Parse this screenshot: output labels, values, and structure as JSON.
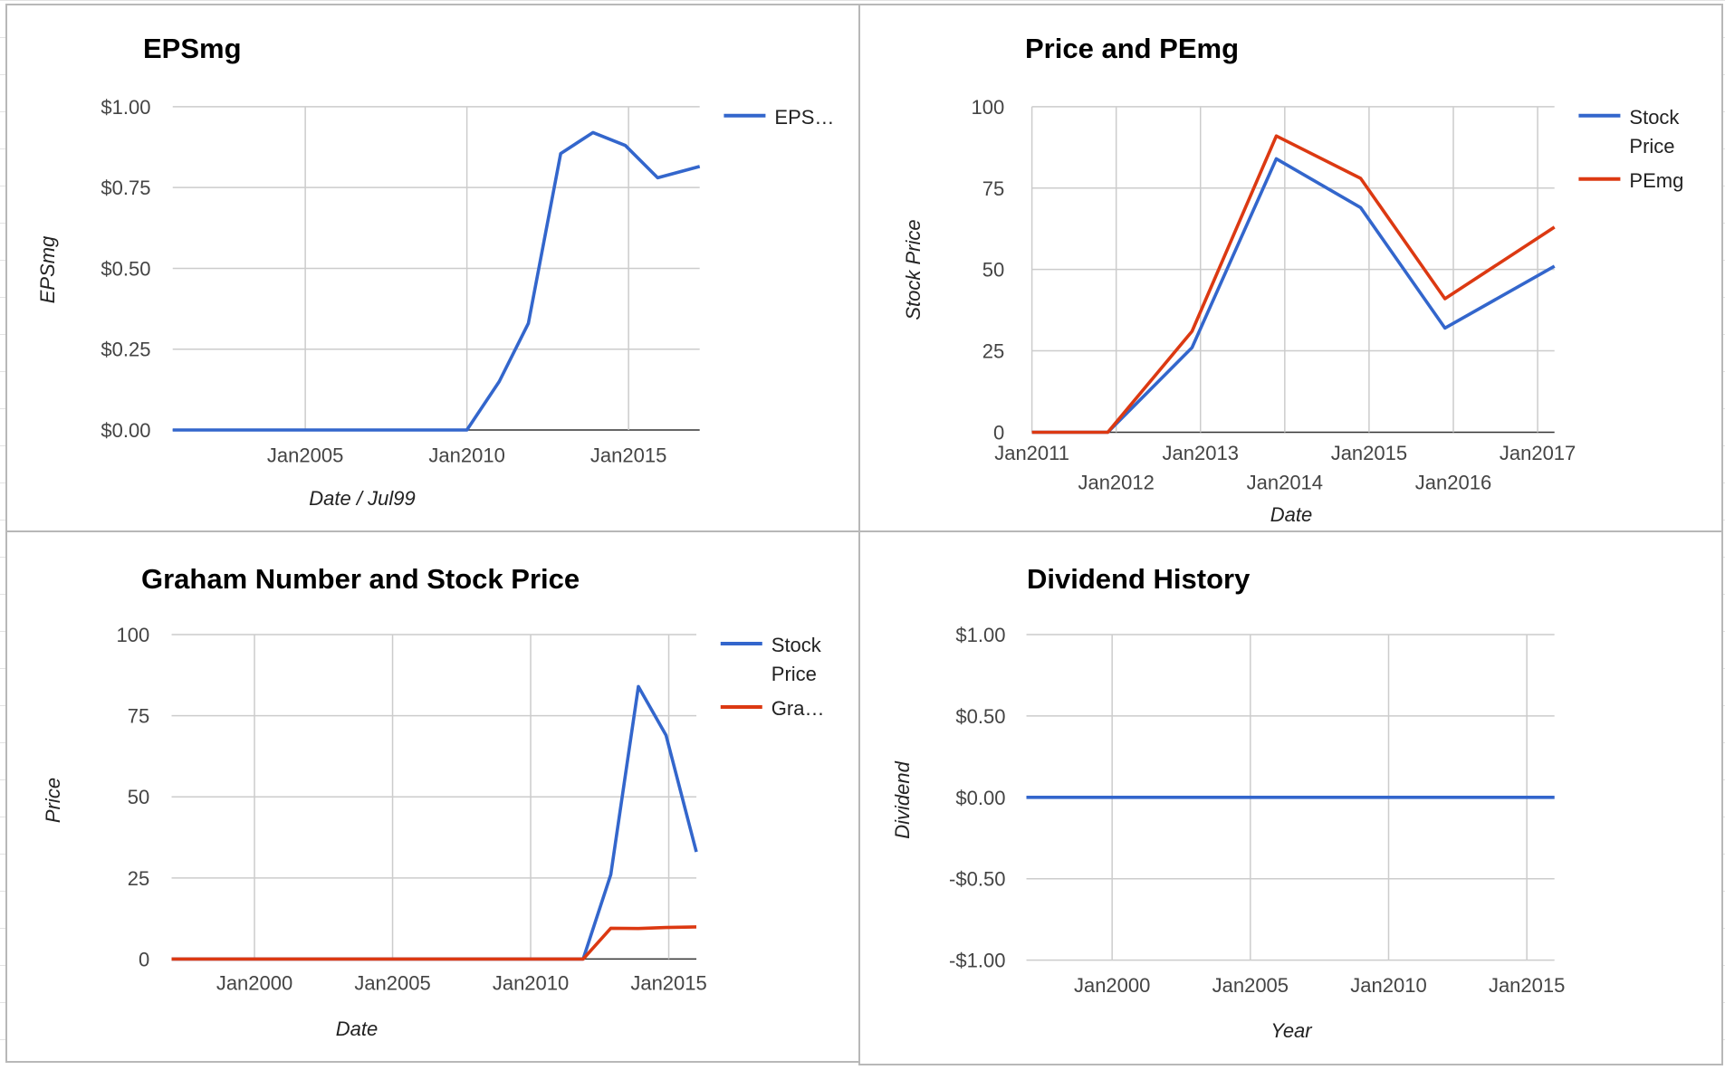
{
  "colors": {
    "blue": "#3366cc",
    "red": "#dc3912"
  },
  "chart_data": [
    {
      "id": "eps",
      "type": "line",
      "title": "EPSmg",
      "xlabel": "Date / Jul99",
      "ylabel": "EPSmg",
      "x_ticks": [
        2005,
        2010,
        2015
      ],
      "x_tick_labels": [
        "Jan2005",
        "Jan2010",
        "Jan2015"
      ],
      "xlim": [
        2000.9,
        2017.2
      ],
      "y_ticks": [
        0,
        0.25,
        0.5,
        0.75,
        1.0
      ],
      "y_tick_labels": [
        "$0.00",
        "$0.25",
        "$0.50",
        "$0.75",
        "$1.00"
      ],
      "ylim": [
        0,
        1.0
      ],
      "grid": true,
      "legend": "right",
      "series": [
        {
          "name": "EPS…",
          "color": "#3366cc",
          "x": [
            2000.9,
            2001.9,
            2002.9,
            2003.9,
            2004.9,
            2005.9,
            2006.9,
            2007.9,
            2008.9,
            2009.9,
            2010.0,
            2011.0,
            2011.9,
            2012.9,
            2013.9,
            2014.9,
            2015.9,
            2017.2
          ],
          "y": [
            0,
            0,
            0,
            0,
            0,
            0,
            0,
            0,
            0,
            0,
            0,
            0.15,
            0.33,
            0.855,
            0.92,
            0.88,
            0.78,
            0.815
          ]
        }
      ]
    },
    {
      "id": "price-pe",
      "type": "line",
      "title": "Price and PEmg",
      "xlabel": "Date",
      "ylabel": "Stock Price",
      "x_ticks": [
        2011,
        2012,
        2013,
        2014,
        2015,
        2016,
        2017
      ],
      "x_tick_labels": [
        "Jan2011",
        "Jan2012",
        "Jan2013",
        "Jan2014",
        "Jan2015",
        "Jan2016",
        "Jan2017"
      ],
      "xlim": [
        2011.0,
        2017.2
      ],
      "y_ticks": [
        0,
        25,
        50,
        75,
        100
      ],
      "y_tick_labels": [
        "0",
        "25",
        "50",
        "75",
        "100"
      ],
      "ylim": [
        0,
        100
      ],
      "grid": true,
      "legend": "right",
      "series": [
        {
          "name": "Stock Price",
          "color": "#3366cc",
          "x": [
            2011.0,
            2011.9,
            2012.9,
            2013.9,
            2014.9,
            2015.9,
            2017.2
          ],
          "y": [
            0,
            0,
            26,
            84,
            69,
            32,
            51
          ]
        },
        {
          "name": "PEmg",
          "color": "#dc3912",
          "x": [
            2011.0,
            2011.9,
            2012.9,
            2013.9,
            2014.9,
            2015.9,
            2017.2
          ],
          "y": [
            0,
            0,
            31,
            91,
            78,
            41,
            63
          ]
        }
      ]
    },
    {
      "id": "graham",
      "type": "line",
      "title": "Graham Number and Stock Price",
      "xlabel": "Date",
      "ylabel": "Price",
      "x_ticks": [
        2000,
        2005,
        2010,
        2015
      ],
      "x_tick_labels": [
        "Jan2000",
        "Jan2005",
        "Jan2010",
        "Jan2015"
      ],
      "xlim": [
        1997.0,
        2016.0
      ],
      "y_ticks": [
        0,
        25,
        50,
        75,
        100
      ],
      "y_tick_labels": [
        "0",
        "25",
        "50",
        "75",
        "100"
      ],
      "ylim": [
        0,
        100
      ],
      "grid": true,
      "legend": "right",
      "series": [
        {
          "name": "Stock Price",
          "color": "#3366cc",
          "x": [
            1997.0,
            2011.9,
            2012.9,
            2013.9,
            2014.9,
            2016.0
          ],
          "y": [
            0,
            0,
            26,
            84,
            69,
            33
          ]
        },
        {
          "name": "Gra…",
          "color": "#dc3912",
          "x": [
            1997.0,
            2011.9,
            2012.9,
            2013.9,
            2014.9,
            2016.0
          ],
          "y": [
            0,
            0,
            9.5,
            9.4,
            9.7,
            9.9
          ]
        }
      ]
    },
    {
      "id": "dividend",
      "type": "line",
      "title": "Dividend History",
      "xlabel": "Year",
      "ylabel": "Dividend",
      "x_ticks": [
        2000,
        2005,
        2010,
        2015
      ],
      "x_tick_labels": [
        "Jan2000",
        "Jan2005",
        "Jan2010",
        "Jan2015"
      ],
      "xlim": [
        1996.9,
        2016.0
      ],
      "y_ticks": [
        -1.0,
        -0.5,
        0,
        0.5,
        1.0
      ],
      "y_tick_labels": [
        "-$1.00",
        "-$0.50",
        "$0.00",
        "$0.50",
        "$1.00"
      ],
      "ylim": [
        -1.0,
        1.0
      ],
      "grid": true,
      "legend": "none",
      "series": [
        {
          "color": "#3366cc",
          "x": [
            1996.9,
            2016.0
          ],
          "y": [
            0,
            0
          ]
        }
      ]
    }
  ]
}
